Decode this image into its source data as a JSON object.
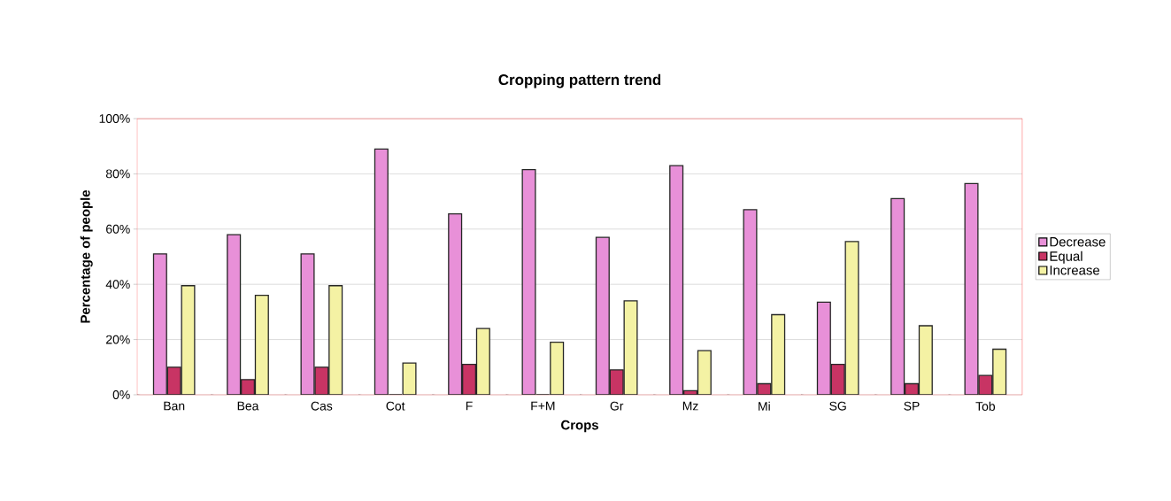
{
  "chart_data": {
    "type": "bar",
    "title": "Cropping pattern trend",
    "xlabel": "Crops",
    "ylabel": "Percentage of people",
    "categories": [
      "Ban",
      "Bea",
      "Cas",
      "Cot",
      "F",
      "F+M",
      "Gr",
      "Mz",
      "Mi",
      "SG",
      "SP",
      "Tob"
    ],
    "series": [
      {
        "name": "Decrease",
        "color": "#e890d8",
        "values": [
          51,
          58,
          51,
          89,
          65.5,
          81.5,
          57,
          83,
          67,
          33.5,
          71,
          76.5
        ]
      },
      {
        "name": "Equal",
        "color": "#c83464",
        "values": [
          10,
          5.5,
          10,
          0,
          11,
          0,
          9,
          1.5,
          4,
          11,
          4,
          7
        ]
      },
      {
        "name": "Increase",
        "color": "#f4f2a4",
        "values": [
          39.5,
          36,
          39.5,
          11.5,
          24,
          19,
          34,
          16,
          29,
          55.5,
          25,
          16.5
        ]
      }
    ],
    "ylim": [
      0,
      100
    ],
    "yticks": [
      {
        "value": 0,
        "label": "0%"
      },
      {
        "value": 20,
        "label": "20%"
      },
      {
        "value": 40,
        "label": "40%"
      },
      {
        "value": 60,
        "label": "60%"
      },
      {
        "value": 80,
        "label": "80%"
      },
      {
        "value": 100,
        "label": "100%"
      }
    ],
    "grid": "y",
    "legend": "right"
  }
}
